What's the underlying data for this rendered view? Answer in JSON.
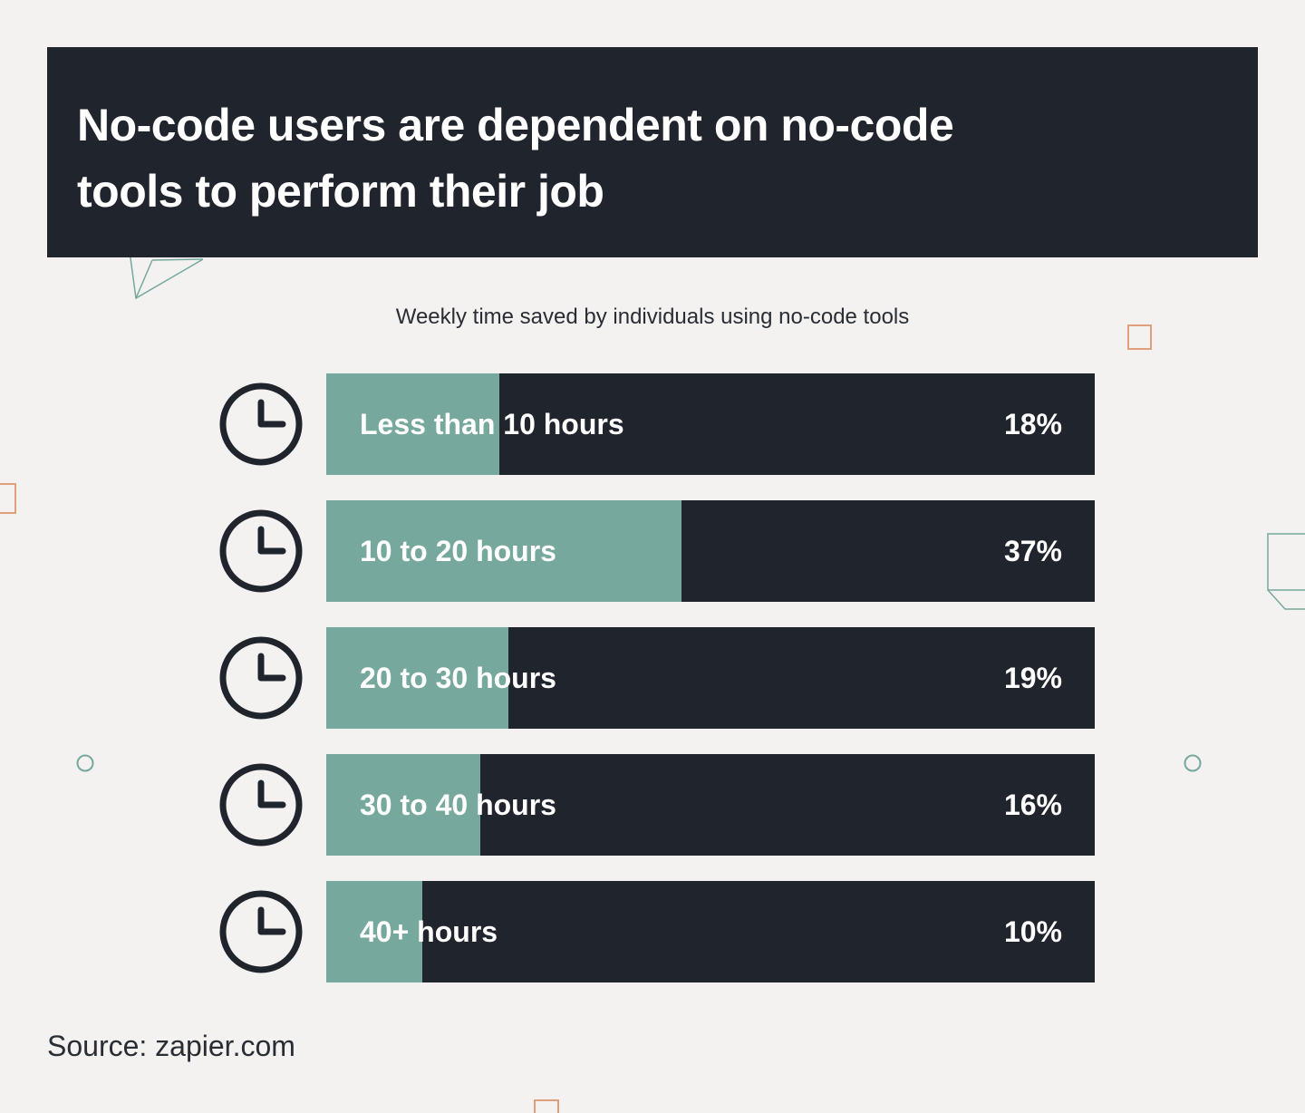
{
  "header": {
    "title": "No-code users are dependent on no-code tools to perform their job"
  },
  "colors": {
    "background": "#f3f2f0",
    "dark": "#20242c",
    "accent": "#77a89d",
    "decor_orange": "#e0a07c"
  },
  "chart_data": {
    "type": "bar",
    "orientation": "horizontal",
    "title": "Weekly time saved by individuals using no-code tools",
    "categories": [
      "Less than 10 hours",
      "10 to 20 hours",
      "20 to 30 hours",
      "30 to 40 hours",
      "40+ hours"
    ],
    "values": [
      18,
      37,
      19,
      16,
      10
    ],
    "value_labels": [
      "18%",
      "37%",
      "19%",
      "16%",
      "10%"
    ],
    "unit": "%",
    "xlim": [
      0,
      80
    ],
    "row_icon": "clock-icon"
  },
  "footer": {
    "source": "Source: zapier.com"
  }
}
